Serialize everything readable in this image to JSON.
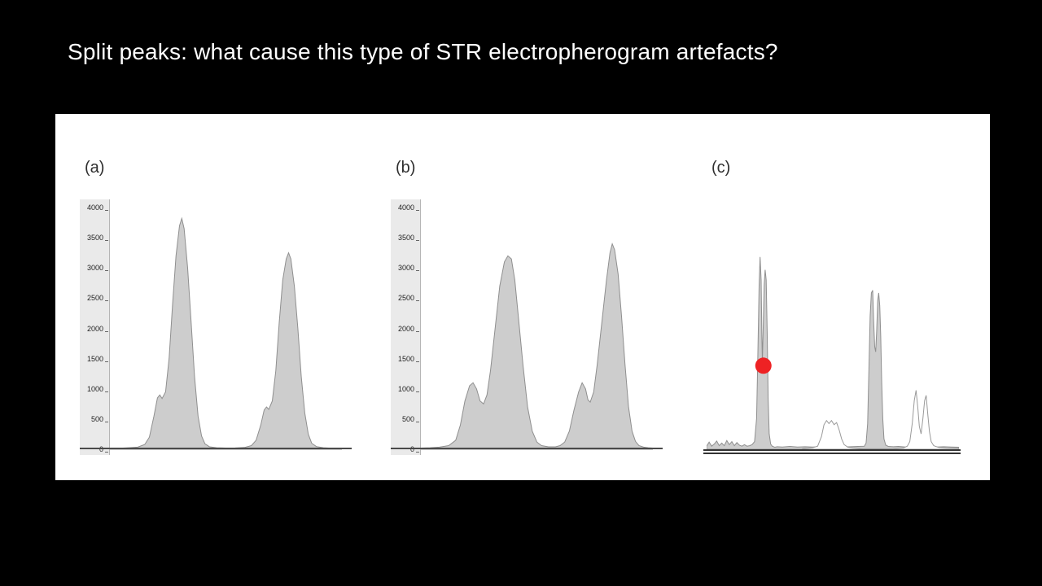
{
  "slide": {
    "title": "Split peaks: what cause this type of STR electropherogram artefacts?",
    "background": "#000000",
    "panel_background": "#ffffff"
  },
  "chart_data": [
    {
      "type": "area",
      "panel_label": "(a)",
      "title": "",
      "xlabel": "",
      "ylabel": "",
      "yticks": [
        4000,
        3500,
        3000,
        2500,
        2000,
        1500,
        1000,
        500,
        0
      ],
      "ylim": [
        0,
        4000
      ],
      "xlim": [
        0,
        100
      ],
      "grid": false,
      "legend": false,
      "series": [
        {
          "name": "allele-peaks-normal",
          "fill": "#cdcdcd",
          "stroke": "#8f8f8f",
          "points": [
            [
              0,
              15
            ],
            [
              4,
              18
            ],
            [
              8,
              25
            ],
            [
              12,
              35
            ],
            [
              15,
              80
            ],
            [
              17,
              200
            ],
            [
              19,
              550
            ],
            [
              20.5,
              850
            ],
            [
              21.5,
              900
            ],
            [
              22.5,
              840
            ],
            [
              24,
              950
            ],
            [
              25.5,
              1500
            ],
            [
              27,
              2400
            ],
            [
              28.5,
              3200
            ],
            [
              30,
              3700
            ],
            [
              31,
              3820
            ],
            [
              32,
              3650
            ],
            [
              33.5,
              3000
            ],
            [
              35,
              2100
            ],
            [
              36.5,
              1200
            ],
            [
              38,
              550
            ],
            [
              39.5,
              220
            ],
            [
              41,
              90
            ],
            [
              43,
              40
            ],
            [
              46,
              25
            ],
            [
              50,
              20
            ],
            [
              54,
              22
            ],
            [
              58,
              30
            ],
            [
              61,
              60
            ],
            [
              63,
              150
            ],
            [
              65,
              400
            ],
            [
              66.5,
              650
            ],
            [
              67.5,
              700
            ],
            [
              68.5,
              660
            ],
            [
              70,
              800
            ],
            [
              71.5,
              1300
            ],
            [
              73,
              2100
            ],
            [
              74.5,
              2800
            ],
            [
              76,
              3150
            ],
            [
              77,
              3250
            ],
            [
              78,
              3150
            ],
            [
              79.5,
              2700
            ],
            [
              81,
              2000
            ],
            [
              82.5,
              1200
            ],
            [
              84,
              600
            ],
            [
              85.5,
              250
            ],
            [
              87,
              100
            ],
            [
              89,
              45
            ],
            [
              92,
              25
            ],
            [
              96,
              18
            ],
            [
              100,
              15
            ]
          ]
        }
      ]
    },
    {
      "type": "area",
      "panel_label": "(b)",
      "title": "",
      "xlabel": "",
      "ylabel": "",
      "yticks": [
        4000,
        3500,
        3000,
        2500,
        2000,
        1500,
        1000,
        500,
        0
      ],
      "ylim": [
        0,
        4000
      ],
      "xlim": [
        0,
        100
      ],
      "grid": false,
      "legend": false,
      "series": [
        {
          "name": "allele-peaks-with-shoulder-peaks",
          "fill": "#cdcdcd",
          "stroke": "#8f8f8f",
          "points": [
            [
              0,
              20
            ],
            [
              4,
              25
            ],
            [
              8,
              35
            ],
            [
              12,
              60
            ],
            [
              15,
              150
            ],
            [
              17,
              400
            ],
            [
              19,
              800
            ],
            [
              21,
              1050
            ],
            [
              22.5,
              1100
            ],
            [
              24,
              1000
            ],
            [
              25.5,
              800
            ],
            [
              27,
              750
            ],
            [
              28.5,
              900
            ],
            [
              30,
              1300
            ],
            [
              32,
              2000
            ],
            [
              34,
              2700
            ],
            [
              36,
              3100
            ],
            [
              37.5,
              3200
            ],
            [
              39,
              3150
            ],
            [
              40.5,
              2800
            ],
            [
              42,
              2200
            ],
            [
              44,
              1400
            ],
            [
              46,
              700
            ],
            [
              48,
              300
            ],
            [
              50,
              120
            ],
            [
              52,
              60
            ],
            [
              55,
              40
            ],
            [
              58,
              40
            ],
            [
              60,
              60
            ],
            [
              62,
              120
            ],
            [
              64,
              300
            ],
            [
              66,
              650
            ],
            [
              68,
              950
            ],
            [
              69.5,
              1100
            ],
            [
              71,
              1000
            ],
            [
              72,
              820
            ],
            [
              73,
              780
            ],
            [
              74.5,
              950
            ],
            [
              76,
              1400
            ],
            [
              78,
              2100
            ],
            [
              80,
              2800
            ],
            [
              81.5,
              3250
            ],
            [
              82.5,
              3400
            ],
            [
              83.5,
              3300
            ],
            [
              85,
              2900
            ],
            [
              86.5,
              2200
            ],
            [
              88,
              1400
            ],
            [
              89.5,
              700
            ],
            [
              91,
              300
            ],
            [
              92.5,
              130
            ],
            [
              94,
              60
            ],
            [
              96,
              35
            ],
            [
              98,
              25
            ],
            [
              100,
              20
            ]
          ]
        }
      ]
    },
    {
      "type": "area",
      "panel_label": "(c)",
      "title": "",
      "xlabel": "",
      "ylabel": "",
      "yticks": [],
      "ylim": [
        0,
        4000
      ],
      "xlim": [
        0,
        100
      ],
      "grid": false,
      "legend": false,
      "series": [
        {
          "name": "split-peaks-gray-trace",
          "fill": "#cdcdcd",
          "stroke": "#8f8f8f",
          "points": [
            [
              0,
              60
            ],
            [
              1,
              140
            ],
            [
              2,
              60
            ],
            [
              3,
              100
            ],
            [
              4,
              160
            ],
            [
              5,
              70
            ],
            [
              6,
              120
            ],
            [
              7,
              70
            ],
            [
              8,
              170
            ],
            [
              9,
              90
            ],
            [
              10,
              150
            ],
            [
              11,
              70
            ],
            [
              12,
              130
            ],
            [
              13,
              80
            ],
            [
              14,
              60
            ],
            [
              15,
              90
            ],
            [
              16,
              60
            ],
            [
              17,
              70
            ],
            [
              18,
              90
            ],
            [
              19,
              150
            ],
            [
              19.8,
              600
            ],
            [
              20.3,
              1800
            ],
            [
              20.8,
              3200
            ],
            [
              21.2,
              3750
            ],
            [
              21.6,
              3300
            ],
            [
              21.9,
              2200
            ],
            [
              22.1,
              1700
            ],
            [
              22.4,
              2300
            ],
            [
              22.8,
              3200
            ],
            [
              23.2,
              3500
            ],
            [
              23.6,
              3300
            ],
            [
              24,
              2300
            ],
            [
              24.4,
              1000
            ],
            [
              24.8,
              300
            ],
            [
              25.4,
              100
            ],
            [
              26,
              60
            ],
            [
              27,
              40
            ],
            [
              28,
              50
            ],
            [
              30,
              45
            ],
            [
              33,
              55
            ],
            [
              36,
              45
            ],
            [
              39,
              50
            ],
            [
              42,
              45
            ],
            [
              45,
              50
            ],
            [
              48,
              45
            ],
            [
              51,
              50
            ],
            [
              54,
              45
            ],
            [
              57,
              50
            ],
            [
              60,
              55
            ],
            [
              62.5,
              60
            ],
            [
              63.2,
              120
            ],
            [
              63.8,
              500
            ],
            [
              64.3,
              1500
            ],
            [
              64.8,
              2600
            ],
            [
              65.3,
              3050
            ],
            [
              65.8,
              3100
            ],
            [
              66.2,
              2500
            ],
            [
              66.6,
              2000
            ],
            [
              67,
              1900
            ],
            [
              67.4,
              2300
            ],
            [
              67.8,
              2900
            ],
            [
              68.2,
              3050
            ],
            [
              68.6,
              2800
            ],
            [
              69,
              2200
            ],
            [
              69.4,
              1300
            ],
            [
              69.8,
              600
            ],
            [
              70.3,
              200
            ],
            [
              71,
              80
            ],
            [
              72,
              55
            ],
            [
              74,
              50
            ],
            [
              76,
              55
            ],
            [
              79,
              45
            ],
            [
              82,
              50
            ],
            [
              85,
              45
            ],
            [
              88,
              50
            ],
            [
              91,
              45
            ],
            [
              94,
              50
            ],
            [
              97,
              45
            ],
            [
              100,
              40
            ]
          ]
        },
        {
          "name": "split-peaks-white-trace",
          "fill": "#ffffff",
          "stroke": "#9a9a9a",
          "points": [
            [
              38,
              15
            ],
            [
              40,
              20
            ],
            [
              42,
              30
            ],
            [
              44,
              60
            ],
            [
              45.5,
              250
            ],
            [
              46.5,
              480
            ],
            [
              47.5,
              560
            ],
            [
              48.5,
              500
            ],
            [
              49.5,
              560
            ],
            [
              50.5,
              480
            ],
            [
              51.5,
              520
            ],
            [
              52.5,
              380
            ],
            [
              53.5,
              200
            ],
            [
              54.5,
              90
            ],
            [
              56,
              40
            ],
            [
              58,
              25
            ],
            [
              62,
              10
            ],
            [
              68,
              10
            ],
            [
              74,
              12
            ],
            [
              78,
              25
            ],
            [
              79.5,
              60
            ],
            [
              80.5,
              150
            ],
            [
              81.5,
              500
            ],
            [
              82.3,
              950
            ],
            [
              83,
              1150
            ],
            [
              83.7,
              800
            ],
            [
              84.3,
              450
            ],
            [
              85,
              300
            ],
            [
              85.7,
              600
            ],
            [
              86.4,
              950
            ],
            [
              87,
              1050
            ],
            [
              87.6,
              700
            ],
            [
              88.3,
              350
            ],
            [
              89,
              150
            ],
            [
              90,
              70
            ],
            [
              92,
              35
            ],
            [
              95,
              25
            ],
            [
              100,
              20
            ]
          ]
        }
      ],
      "marker": {
        "name": "red-dot-annotation",
        "x": 22.5,
        "y": 1630,
        "radius_px": 10,
        "color": "#ee2224"
      }
    }
  ]
}
